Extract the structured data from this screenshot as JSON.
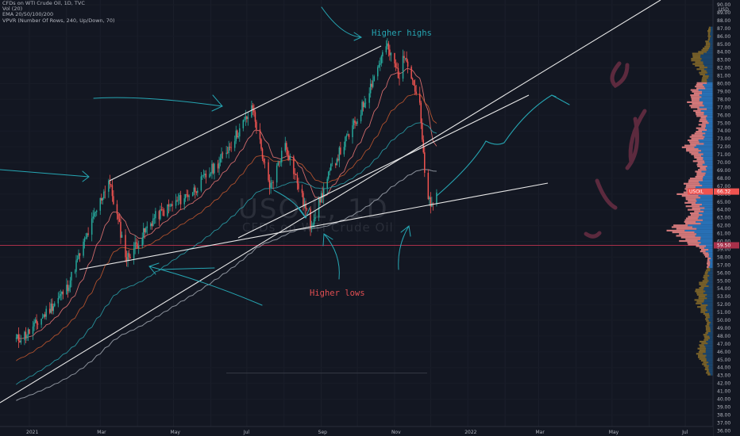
{
  "header": {
    "line1": "CFDs on WTI Crude Oil, 1D, TVC",
    "line2": "Vol (20)",
    "line3": "EMA 20/50/100/200",
    "line4": "VPVR (Number Of Rows, 240, Up/Down, 70)"
  },
  "watermark": {
    "symbol": "USOIL, 1D",
    "name": "CFDs on WTI Crude Oil"
  },
  "annotations": {
    "higher_highs": "Higher highs",
    "higher_lows": "Higher lows"
  },
  "price_axis": {
    "currency": "USD",
    "labels": [
      "90.00",
      "89.00",
      "88.00",
      "87.00",
      "86.00",
      "85.00",
      "84.00",
      "83.00",
      "82.00",
      "81.00",
      "80.00",
      "79.00",
      "78.00",
      "77.00",
      "76.00",
      "75.00",
      "74.00",
      "73.00",
      "72.00",
      "71.00",
      "70.00",
      "69.00",
      "68.00",
      "67.00",
      "66.00",
      "65.00",
      "64.00",
      "63.00",
      "62.00",
      "61.00",
      "60.00",
      "59.00",
      "58.00",
      "57.00",
      "56.00",
      "55.00",
      "54.00",
      "53.00",
      "52.00",
      "51.00",
      "50.00",
      "49.00",
      "48.00",
      "47.00",
      "46.00",
      "45.00",
      "44.00",
      "43.00",
      "42.00",
      "41.00",
      "40.00",
      "39.00",
      "38.00",
      "37.00",
      "36.00"
    ],
    "last_price_tag": "66.32",
    "last_symbol_tag": "USOIL",
    "level_tag": "59.50"
  },
  "time_axis": {
    "labels": [
      "2021",
      "Mar",
      "May",
      "Jul",
      "Sep",
      "Nov",
      "2022",
      "Mar",
      "May",
      "Jul"
    ]
  },
  "colors": {
    "background": "#131722",
    "up": "#26a69a",
    "down": "#ef5350",
    "vp_up": "#1e5f9c",
    "vp_down": "#e57373",
    "vp_value_area": "#f58a8a",
    "annotation_cyan": "#26a6b3",
    "annotation_red": "#e04e52",
    "drawing_maroon": "#5c2a3e",
    "trendline": "#e8e8e8",
    "horizontal_level": "#a8304a"
  },
  "chart_data": {
    "type": "candlestick",
    "title": "CFDs on WTI Crude Oil, 1D, TVC",
    "symbol": "USOIL",
    "timeframe": "1D",
    "ylim": [
      36,
      90
    ],
    "x_range": [
      "2020-12-20",
      "2022-07-20"
    ],
    "key_points": [
      {
        "date": "2021-01-01",
        "price": 48.5
      },
      {
        "date": "2021-02-01",
        "price": 54.0
      },
      {
        "date": "2021-03-08",
        "price": 67.9
      },
      {
        "date": "2021-03-23",
        "price": 57.8
      },
      {
        "date": "2021-04-15",
        "price": 63.0
      },
      {
        "date": "2021-05-18",
        "price": 66.5
      },
      {
        "date": "2021-06-10",
        "price": 70.5
      },
      {
        "date": "2021-07-06",
        "price": 76.9
      },
      {
        "date": "2021-07-20",
        "price": 66.5
      },
      {
        "date": "2021-08-02",
        "price": 72.5
      },
      {
        "date": "2021-08-23",
        "price": 62.0
      },
      {
        "date": "2021-09-10",
        "price": 69.5
      },
      {
        "date": "2021-10-01",
        "price": 75.5
      },
      {
        "date": "2021-10-25",
        "price": 84.8
      },
      {
        "date": "2021-11-05",
        "price": 81.0
      },
      {
        "date": "2021-11-10",
        "price": 84.0
      },
      {
        "date": "2021-11-22",
        "price": 77.0
      },
      {
        "date": "2021-11-26",
        "price": 68.5
      },
      {
        "date": "2021-12-01",
        "price": 64.0
      },
      {
        "date": "2021-12-06",
        "price": 66.3
      }
    ],
    "ema_lengths": [
      20,
      50,
      100,
      200
    ],
    "horizontal_level": 59.5,
    "last_price": 66.32
  }
}
